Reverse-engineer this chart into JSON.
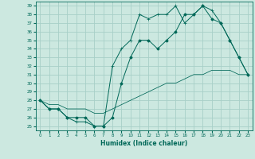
{
  "xlabel": "Humidex (Indice chaleur)",
  "background_color": "#cce8e0",
  "grid_color": "#a8cfc8",
  "line_color": "#006858",
  "xlim": [
    -0.5,
    23.5
  ],
  "ylim": [
    24.5,
    39.5
  ],
  "xticks": [
    0,
    1,
    2,
    3,
    4,
    5,
    6,
    7,
    8,
    9,
    10,
    11,
    12,
    13,
    14,
    15,
    16,
    17,
    18,
    19,
    20,
    21,
    22,
    23
  ],
  "yticks": [
    25,
    26,
    27,
    28,
    29,
    30,
    31,
    32,
    33,
    34,
    35,
    36,
    37,
    38,
    39
  ],
  "line1_x": [
    0,
    1,
    2,
    3,
    4,
    5,
    6,
    7,
    8,
    9,
    10,
    11,
    12,
    13,
    14,
    15,
    16,
    17,
    18,
    19,
    20,
    21,
    22,
    23
  ],
  "line1_y": [
    28,
    27,
    27,
    26,
    25.5,
    25.5,
    25,
    25,
    32,
    34,
    35,
    38,
    37.5,
    38,
    38,
    39,
    37,
    38,
    39,
    38.5,
    37,
    35,
    33,
    31
  ],
  "line2_x": [
    0,
    1,
    2,
    3,
    4,
    5,
    6,
    7,
    8,
    9,
    10,
    11,
    12,
    13,
    14,
    15,
    16,
    17,
    18,
    19,
    20,
    21,
    22,
    23
  ],
  "line2_y": [
    28,
    27,
    27,
    26,
    26,
    26,
    25,
    25,
    26,
    30,
    33,
    35,
    35,
    34,
    35,
    36,
    38,
    38,
    39,
    37.5,
    37,
    35,
    33,
    31
  ],
  "line3_x": [
    0,
    1,
    2,
    3,
    4,
    5,
    6,
    7,
    8,
    9,
    10,
    11,
    12,
    13,
    14,
    15,
    16,
    17,
    18,
    19,
    20,
    21,
    22,
    23
  ],
  "line3_y": [
    28,
    27.5,
    27.5,
    27,
    27,
    27,
    26.5,
    26.5,
    27,
    27.5,
    28,
    28.5,
    29,
    29.5,
    30,
    30,
    30.5,
    31,
    31,
    31.5,
    31.5,
    31.5,
    31,
    31
  ]
}
